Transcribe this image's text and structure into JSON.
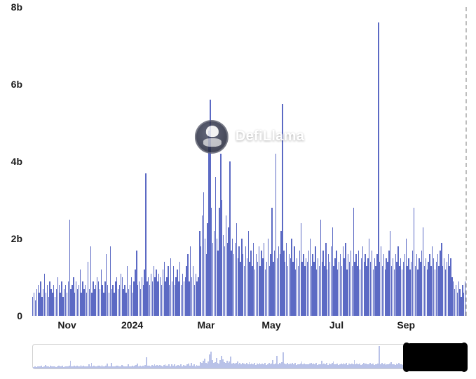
{
  "chart": {
    "type": "bar",
    "ylim": [
      0,
      8
    ],
    "y_ticks": [
      {
        "value": 0,
        "label": "0"
      },
      {
        "value": 2,
        "label": "2b"
      },
      {
        "value": 4,
        "label": "4b"
      },
      {
        "value": 6,
        "label": "6b"
      },
      {
        "value": 8,
        "label": "8b"
      }
    ],
    "x_ticks": [
      {
        "pos": 0.08,
        "label": "Nov",
        "bold": false
      },
      {
        "pos": 0.23,
        "label": "2024",
        "bold": true
      },
      {
        "pos": 0.4,
        "label": "Mar",
        "bold": false
      },
      {
        "pos": 0.55,
        "label": "May",
        "bold": false
      },
      {
        "pos": 0.7,
        "label": "Jul",
        "bold": false
      },
      {
        "pos": 0.86,
        "label": "Sep",
        "bold": false
      }
    ],
    "bar_color": "#5c6ac4",
    "background_color": "#ffffff",
    "right_border_style": "dashed",
    "right_border_color": "#bdbdbd",
    "values": [
      0.5,
      0.6,
      0.4,
      0.7,
      0.8,
      0.6,
      0.9,
      0.5,
      0.7,
      1.1,
      0.6,
      0.8,
      0.5,
      0.9,
      0.7,
      0.6,
      0.8,
      0.5,
      0.7,
      1.0,
      0.8,
      0.6,
      0.9,
      0.5,
      0.7,
      0.8,
      0.6,
      0.9,
      2.5,
      0.7,
      0.8,
      1.0,
      0.6,
      0.9,
      0.7,
      0.8,
      1.2,
      0.6,
      0.9,
      0.7,
      0.8,
      0.6,
      1.4,
      0.7,
      1.8,
      0.6,
      0.9,
      0.7,
      0.8,
      1.0,
      0.9,
      0.7,
      1.2,
      0.8,
      0.6,
      0.9,
      1.6,
      0.8,
      0.6,
      1.8,
      0.7,
      0.8,
      0.6,
      0.9,
      1.0,
      0.7,
      0.8,
      1.1,
      1.0,
      0.7,
      0.8,
      0.6,
      1.3,
      0.7,
      0.8,
      1.0,
      0.6,
      0.9,
      1.2,
      1.7,
      0.8,
      0.9,
      0.7,
      1.0,
      0.8,
      1.2,
      3.7,
      0.9,
      1.0,
      0.8,
      1.1,
      0.9,
      1.3,
      1.0,
      1.2,
      0.9,
      1.1,
      1.0,
      0.8,
      1.2,
      1.4,
      0.9,
      1.0,
      1.3,
      0.8,
      1.5,
      0.9,
      1.3,
      0.8,
      1.0,
      1.2,
      0.9,
      1.4,
      0.8,
      1.1,
      0.9,
      1.0,
      1.3,
      1.6,
      0.9,
      1.8,
      1.0,
      1.3,
      0.8,
      1.1,
      0.9,
      1.0,
      2.2,
      1.8,
      2.6,
      3.2,
      2.0,
      1.6,
      2.4,
      4.8,
      5.6,
      2.8,
      1.9,
      2.2,
      3.6,
      2.0,
      1.7,
      2.8,
      4.2,
      3.0,
      2.1,
      1.8,
      2.6,
      1.9,
      2.3,
      4.0,
      1.7,
      2.0,
      1.6,
      1.9,
      2.4,
      1.5,
      1.8,
      1.4,
      2.0,
      1.6,
      1.3,
      1.8,
      1.5,
      2.2,
      1.4,
      1.7,
      1.3,
      1.9,
      1.2,
      1.6,
      1.4,
      1.8,
      1.3,
      1.7,
      1.5,
      1.9,
      1.2,
      1.4,
      2.0,
      1.3,
      1.6,
      2.8,
      1.4,
      1.7,
      4.2,
      1.5,
      1.8,
      1.6,
      2.2,
      5.5,
      1.7,
      1.4,
      1.9,
      1.3,
      1.6,
      1.5,
      2.0,
      1.4,
      1.8,
      1.2,
      1.5,
      1.3,
      1.7,
      2.4,
      1.4,
      1.6,
      1.3,
      1.5,
      1.4,
      1.7,
      2.0,
      1.3,
      1.6,
      1.4,
      1.8,
      1.2,
      1.5,
      1.3,
      2.5,
      1.4,
      1.7,
      1.3,
      1.9,
      1.2,
      1.6,
      1.4,
      1.8,
      2.3,
      1.3,
      1.5,
      1.7,
      1.2,
      1.4,
      1.6,
      1.3,
      1.8,
      1.5,
      1.9,
      1.2,
      1.6,
      1.4,
      1.7,
      1.3,
      2.8,
      1.4,
      1.6,
      1.3,
      1.7,
      1.2,
      1.5,
      1.8,
      1.4,
      1.6,
      1.3,
      1.5,
      2.0,
      1.4,
      1.7,
      1.2,
      1.5,
      1.3,
      1.6,
      7.6,
      1.4,
      1.8,
      1.3,
      1.6,
      1.2,
      1.5,
      1.4,
      1.7,
      2.2,
      1.3,
      1.5,
      1.2,
      1.6,
      1.4,
      1.8,
      1.3,
      1.5,
      1.2,
      1.4,
      1.6,
      2.0,
      1.3,
      1.5,
      1.2,
      1.4,
      1.7,
      2.8,
      1.3,
      1.6,
      1.2,
      1.5,
      1.4,
      1.7,
      2.3,
      1.3,
      1.5,
      1.2,
      1.4,
      1.6,
      1.3,
      1.8,
      1.5,
      1.2,
      1.4,
      1.6,
      1.3,
      1.7,
      1.9,
      1.3,
      1.5,
      1.2,
      1.4,
      1.6,
      1.3,
      1.5,
      1.0,
      0.9,
      0.7,
      0.8,
      0.6,
      0.9,
      0.7,
      0.5,
      0.8,
      0.6,
      0.9
    ],
    "watermark": {
      "text": "DefiLlama",
      "text_color": "#ffffff",
      "icon_bg": "#2a2e42"
    }
  },
  "brush": {
    "selection_color": "#000000",
    "area_color": "#b9c2e8",
    "border_color": "#d0d0d0",
    "selected_fraction_start": 0.865,
    "selected_fraction_end": 1.0
  }
}
